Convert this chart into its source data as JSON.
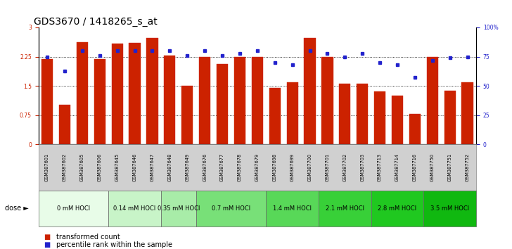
{
  "title": "GDS3670 / 1418265_s_at",
  "samples": [
    "GSM387601",
    "GSM387602",
    "GSM387605",
    "GSM387606",
    "GSM387645",
    "GSM387646",
    "GSM387647",
    "GSM387648",
    "GSM387649",
    "GSM387676",
    "GSM387677",
    "GSM387678",
    "GSM387679",
    "GSM387698",
    "GSM387699",
    "GSM387700",
    "GSM387701",
    "GSM387702",
    "GSM387703",
    "GSM387713",
    "GSM387714",
    "GSM387716",
    "GSM387750",
    "GSM387751",
    "GSM387752"
  ],
  "bar_values": [
    2.18,
    1.02,
    2.62,
    2.18,
    2.58,
    2.6,
    2.72,
    2.28,
    1.5,
    2.24,
    2.06,
    2.24,
    2.24,
    1.44,
    1.6,
    2.72,
    2.24,
    1.55,
    1.55,
    1.36,
    1.25,
    0.78,
    2.24,
    1.38,
    1.6
  ],
  "percentile_values": [
    75,
    63,
    80,
    76,
    80,
    80,
    80,
    80,
    76,
    80,
    76,
    78,
    80,
    70,
    68,
    80,
    78,
    75,
    78,
    70,
    68,
    57,
    72,
    74,
    75
  ],
  "dose_groups": [
    {
      "label": "0 mM HOCl",
      "start": 0,
      "end": 4,
      "color": "#e8fce8"
    },
    {
      "label": "0.14 mM HOCl",
      "start": 4,
      "end": 7,
      "color": "#c8f4c8"
    },
    {
      "label": "0.35 mM HOCl",
      "start": 7,
      "end": 9,
      "color": "#a8eca8"
    },
    {
      "label": "0.7 mM HOCl",
      "start": 9,
      "end": 13,
      "color": "#78e078"
    },
    {
      "label": "1.4 mM HOCl",
      "start": 13,
      "end": 16,
      "color": "#58d858"
    },
    {
      "label": "2.1 mM HOCl",
      "start": 16,
      "end": 19,
      "color": "#38d038"
    },
    {
      "label": "2.8 mM HOCl",
      "start": 19,
      "end": 22,
      "color": "#20c820"
    },
    {
      "label": "3.5 mM HOCl",
      "start": 22,
      "end": 25,
      "color": "#10b810"
    }
  ],
  "bar_color": "#cc2200",
  "dot_color": "#2222cc",
  "bg_color": "#ffffff",
  "yticks_left": [
    0,
    0.75,
    1.5,
    2.25,
    3
  ],
  "yticks_right": [
    0,
    25,
    50,
    75,
    100
  ],
  "ylim_left": [
    0,
    3
  ],
  "ylim_right": [
    0,
    100
  ],
  "title_fontsize": 10,
  "tick_fontsize": 5.5,
  "dose_fontsize": 6.0,
  "legend_fontsize": 7
}
